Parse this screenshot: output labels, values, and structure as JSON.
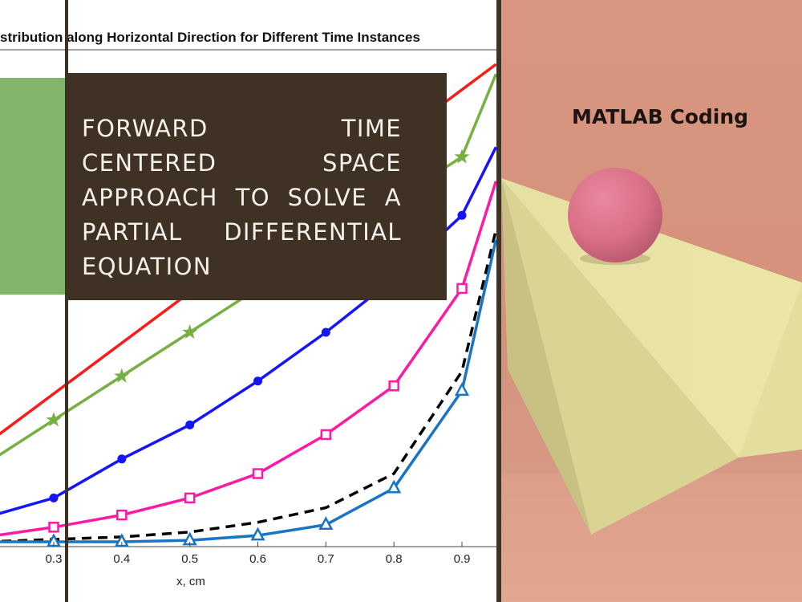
{
  "cover": {
    "heading": "FORWARD TIME CENTERED SPACE APPROACH TO SOLVE A PARTIAL DIFFERENTIAL EQUATION",
    "badge": "MATLAB Coding"
  },
  "colors": {
    "title_box": "#3f3224",
    "title_text": "#f4f1ea",
    "green_block": "#82b46c",
    "divider": "#3d3224",
    "right_panel": "#d5917c"
  },
  "chart_data": {
    "type": "line",
    "title": "stribution along Horizontal Direction for Different Time Instances",
    "xlabel": "x, cm",
    "ylabel": "",
    "xlim": [
      0.2,
      0.95
    ],
    "ylim": [
      0,
      1
    ],
    "grid": false,
    "xticks": [
      "0.3",
      "0.4",
      "0.5",
      "0.6",
      "0.7",
      "0.8",
      "0.9"
    ],
    "series": [
      {
        "color": "#ff1a1a",
        "marker": "none",
        "dash": "solid",
        "x": [
          0.2,
          0.95
        ],
        "y": [
          0.2,
          0.98
        ]
      },
      {
        "color": "#76b043",
        "marker": "star",
        "dash": "solid",
        "x": [
          0.2,
          0.3,
          0.4,
          0.5,
          0.6,
          0.7,
          0.8,
          0.9,
          0.95
        ],
        "y": [
          0.16,
          0.25,
          0.34,
          0.43,
          0.52,
          0.61,
          0.7,
          0.79,
          0.96
        ]
      },
      {
        "color": "#1414ff",
        "marker": "circle",
        "dash": "solid",
        "x": [
          0.2,
          0.3,
          0.4,
          0.5,
          0.6,
          0.7,
          0.8,
          0.9,
          0.95
        ],
        "y": [
          0.05,
          0.09,
          0.17,
          0.24,
          0.33,
          0.43,
          0.54,
          0.67,
          0.81
        ]
      },
      {
        "color": "#ff1aa6",
        "marker": "square",
        "dash": "solid",
        "x": [
          0.2,
          0.3,
          0.4,
          0.5,
          0.6,
          0.7,
          0.8,
          0.9,
          0.95
        ],
        "y": [
          0.01,
          0.03,
          0.055,
          0.09,
          0.14,
          0.22,
          0.32,
          0.52,
          0.74
        ]
      },
      {
        "color": "#000000",
        "marker": "none",
        "dash": "dashed",
        "x": [
          0.2,
          0.3,
          0.4,
          0.5,
          0.6,
          0.7,
          0.8,
          0.9,
          0.95
        ],
        "y": [
          0.0,
          0.005,
          0.01,
          0.02,
          0.04,
          0.07,
          0.14,
          0.35,
          0.64
        ]
      },
      {
        "color": "#1a74c4",
        "marker": "triangle",
        "dash": "solid",
        "x": [
          0.2,
          0.3,
          0.4,
          0.5,
          0.6,
          0.7,
          0.8,
          0.9,
          0.95
        ],
        "y": [
          0.0,
          0.0,
          0.0,
          0.003,
          0.013,
          0.035,
          0.11,
          0.31,
          0.62
        ]
      }
    ]
  }
}
